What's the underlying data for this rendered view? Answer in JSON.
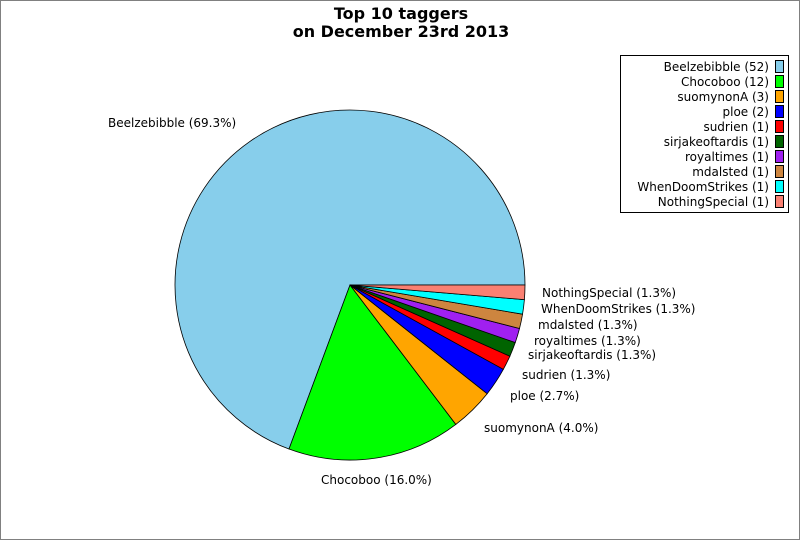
{
  "chart_data": {
    "type": "pie",
    "title": "Top 10 taggers",
    "subtitle": "on December 23rd 2013",
    "slices": [
      {
        "name": "Beelzebibble",
        "count": 52,
        "percent": "69.3%",
        "color": "#87ceeb"
      },
      {
        "name": "Chocoboo",
        "count": 12,
        "percent": "16.0%",
        "color": "#00ff00"
      },
      {
        "name": "suomynonA",
        "count": 3,
        "percent": "4.0%",
        "color": "#ffa500"
      },
      {
        "name": "ploe",
        "count": 2,
        "percent": "2.7%",
        "color": "#0000ff"
      },
      {
        "name": "sudrien",
        "count": 1,
        "percent": "1.3%",
        "color": "#ff0000"
      },
      {
        "name": "sirjakeoftardis",
        "count": 1,
        "percent": "1.3%",
        "color": "#006400"
      },
      {
        "name": "royaltimes",
        "count": 1,
        "percent": "1.3%",
        "color": "#a020f0"
      },
      {
        "name": "mdalsted",
        "count": 1,
        "percent": "1.3%",
        "color": "#cd853f"
      },
      {
        "name": "WhenDoomStrikes",
        "count": 1,
        "percent": "1.3%",
        "color": "#00ffff"
      },
      {
        "name": "NothingSpecial",
        "count": 1,
        "percent": "1.3%",
        "color": "#fa8072"
      }
    ],
    "legend_position": "top-right"
  }
}
